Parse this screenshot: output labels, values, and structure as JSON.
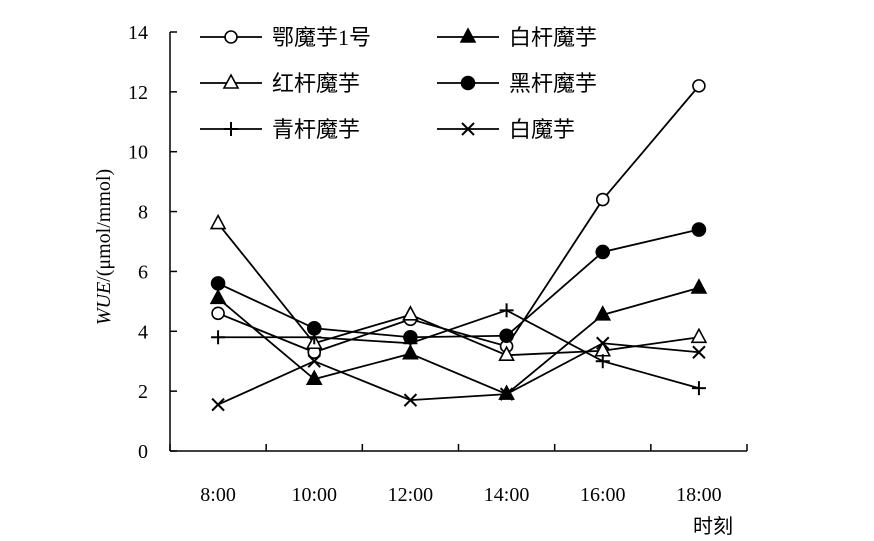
{
  "chart_data": {
    "type": "line",
    "xlabel": "时刻",
    "ylabel_italic": "WUE",
    "ylabel_unit": "/(μmol/mmol)",
    "ylim": [
      0,
      14
    ],
    "yticks": [
      0,
      2,
      4,
      6,
      8,
      10,
      12,
      14
    ],
    "categories": [
      "8:00",
      "10:00",
      "12:00",
      "14:00",
      "16:00",
      "18:00"
    ],
    "grid": false,
    "legend_position": "top",
    "series": [
      {
        "name": "鄂魔芋1号",
        "marker": "circle-open",
        "values": [
          4.6,
          3.3,
          4.4,
          3.5,
          8.4,
          12.2
        ]
      },
      {
        "name": "白杆魔芋",
        "marker": "triangle-filled",
        "values": [
          5.1,
          2.4,
          3.25,
          1.9,
          4.55,
          5.45
        ]
      },
      {
        "name": "红杆魔芋",
        "marker": "triangle-open",
        "values": [
          7.6,
          3.6,
          4.55,
          3.2,
          3.35,
          3.8
        ]
      },
      {
        "name": "黑杆魔芋",
        "marker": "circle-filled",
        "values": [
          5.6,
          4.1,
          3.8,
          3.85,
          6.65,
          7.4
        ]
      },
      {
        "name": "青杆魔芋",
        "marker": "plus",
        "values": [
          3.8,
          3.8,
          3.6,
          4.7,
          3.0,
          2.1
        ]
      },
      {
        "name": "白魔芋",
        "marker": "cross",
        "values": [
          1.55,
          3.0,
          1.7,
          1.9,
          3.6,
          3.3
        ]
      }
    ]
  }
}
